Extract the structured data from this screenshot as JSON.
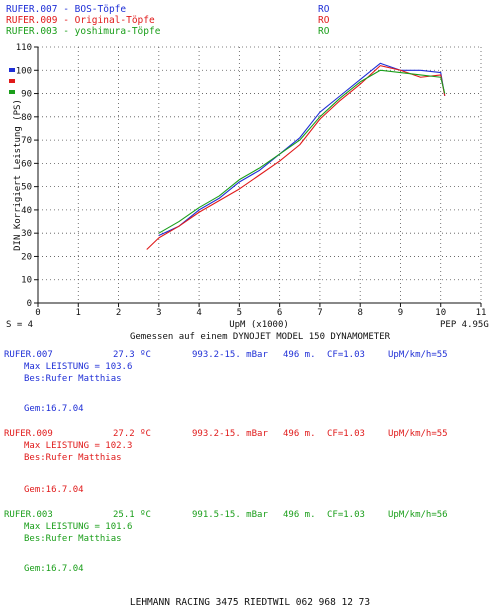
{
  "legend": [
    {
      "label": "RUFER.007 - BOS-Töpfe",
      "tag": "RO",
      "color": "#1f2fd6"
    },
    {
      "label": "RUFER.009 - Original-Töpfe",
      "tag": "RO",
      "color": "#e01a1a"
    },
    {
      "label": "RUFER.003 - yoshimura-Töpfe",
      "tag": "RO",
      "color": "#1a9e1a"
    }
  ],
  "chart_data": {
    "type": "line",
    "xlabel": "UpM (x1000)",
    "ylabel": "DIN Korrigiert Leistung (PS)",
    "xlim": [
      0,
      11
    ],
    "ylim": [
      0,
      110
    ],
    "xticks": [
      0,
      1,
      2,
      3,
      4,
      5,
      6,
      7,
      8,
      9,
      10,
      11
    ],
    "yticks": [
      0,
      10,
      20,
      30,
      40,
      50,
      60,
      70,
      80,
      90,
      100,
      110
    ],
    "grid": true,
    "series": [
      {
        "name": "RUFER.007 - BOS-Töpfe",
        "color": "#1f2fd6",
        "x": [
          3.0,
          3.5,
          4.0,
          4.5,
          5.0,
          5.5,
          6.0,
          6.5,
          7.0,
          7.5,
          8.0,
          8.5,
          9.0,
          9.5,
          10.0,
          10.1
        ],
        "y": [
          29,
          33,
          40,
          45,
          52,
          57,
          64,
          71,
          82,
          89,
          96,
          103,
          100,
          100,
          99,
          89
        ]
      },
      {
        "name": "RUFER.009 - Original-Töpfe",
        "color": "#e01a1a",
        "x": [
          2.7,
          3.0,
          3.5,
          4.0,
          4.5,
          5.0,
          5.5,
          6.0,
          6.5,
          7.0,
          7.5,
          8.0,
          8.5,
          9.0,
          9.5,
          10.0,
          10.1
        ],
        "y": [
          23,
          28,
          33,
          39,
          44,
          49,
          55,
          61,
          68,
          79,
          87,
          94,
          102,
          100,
          97,
          98,
          89
        ]
      },
      {
        "name": "RUFER.003 - yoshimura-Töpfe",
        "color": "#1a9e1a",
        "x": [
          3.0,
          3.5,
          4.0,
          4.5,
          5.0,
          5.5,
          6.0,
          6.5,
          7.0,
          7.5,
          8.0,
          8.5,
          9.0,
          9.5,
          10.0,
          10.1
        ],
        "y": [
          30,
          35,
          41,
          46,
          53,
          58,
          64,
          70,
          80,
          88,
          95,
          100,
          99,
          98,
          97,
          90
        ]
      }
    ]
  },
  "chart_labels": {
    "s_value": "S = 4",
    "pep": "PEP 4.95G",
    "measured": "Gemessen auf einem DYNOJET MODEL 150 DYNAMOMETER"
  },
  "runs": [
    {
      "name": "RUFER.007",
      "temp": "27.3 ºC",
      "pressure": "993.2-15. mBar",
      "alt": "496 m.",
      "cf": "CF=1.03",
      "ratio": "UpM/km/h=55",
      "max": "Max LEISTUNG = 103.6",
      "bes": "Bes:Rufer Matthias",
      "gem": "Gem:16.7.04",
      "color": "#1f2fd6"
    },
    {
      "name": "RUFER.009",
      "temp": "27.2 ºC",
      "pressure": "993.2-15. mBar",
      "alt": "496 m.",
      "cf": "CF=1.03",
      "ratio": "UpM/km/h=55",
      "max": "Max LEISTUNG = 102.3",
      "bes": "Bes:Rufer Matthias",
      "gem": "Gem:16.7.04",
      "color": "#e01a1a"
    },
    {
      "name": "RUFER.003",
      "temp": "25.1 ºC",
      "pressure": "991.5-15. mBar",
      "alt": "496 m.",
      "cf": "CF=1.03",
      "ratio": "UpM/km/h=56",
      "max": "Max LEISTUNG = 101.6",
      "bes": "Bes:Rufer Matthias",
      "gem": "Gem:16.7.04",
      "color": "#1a9e1a"
    }
  ],
  "footer": "LEHMANN RACING 3475 RIEDTWIL 062 968 12 73"
}
